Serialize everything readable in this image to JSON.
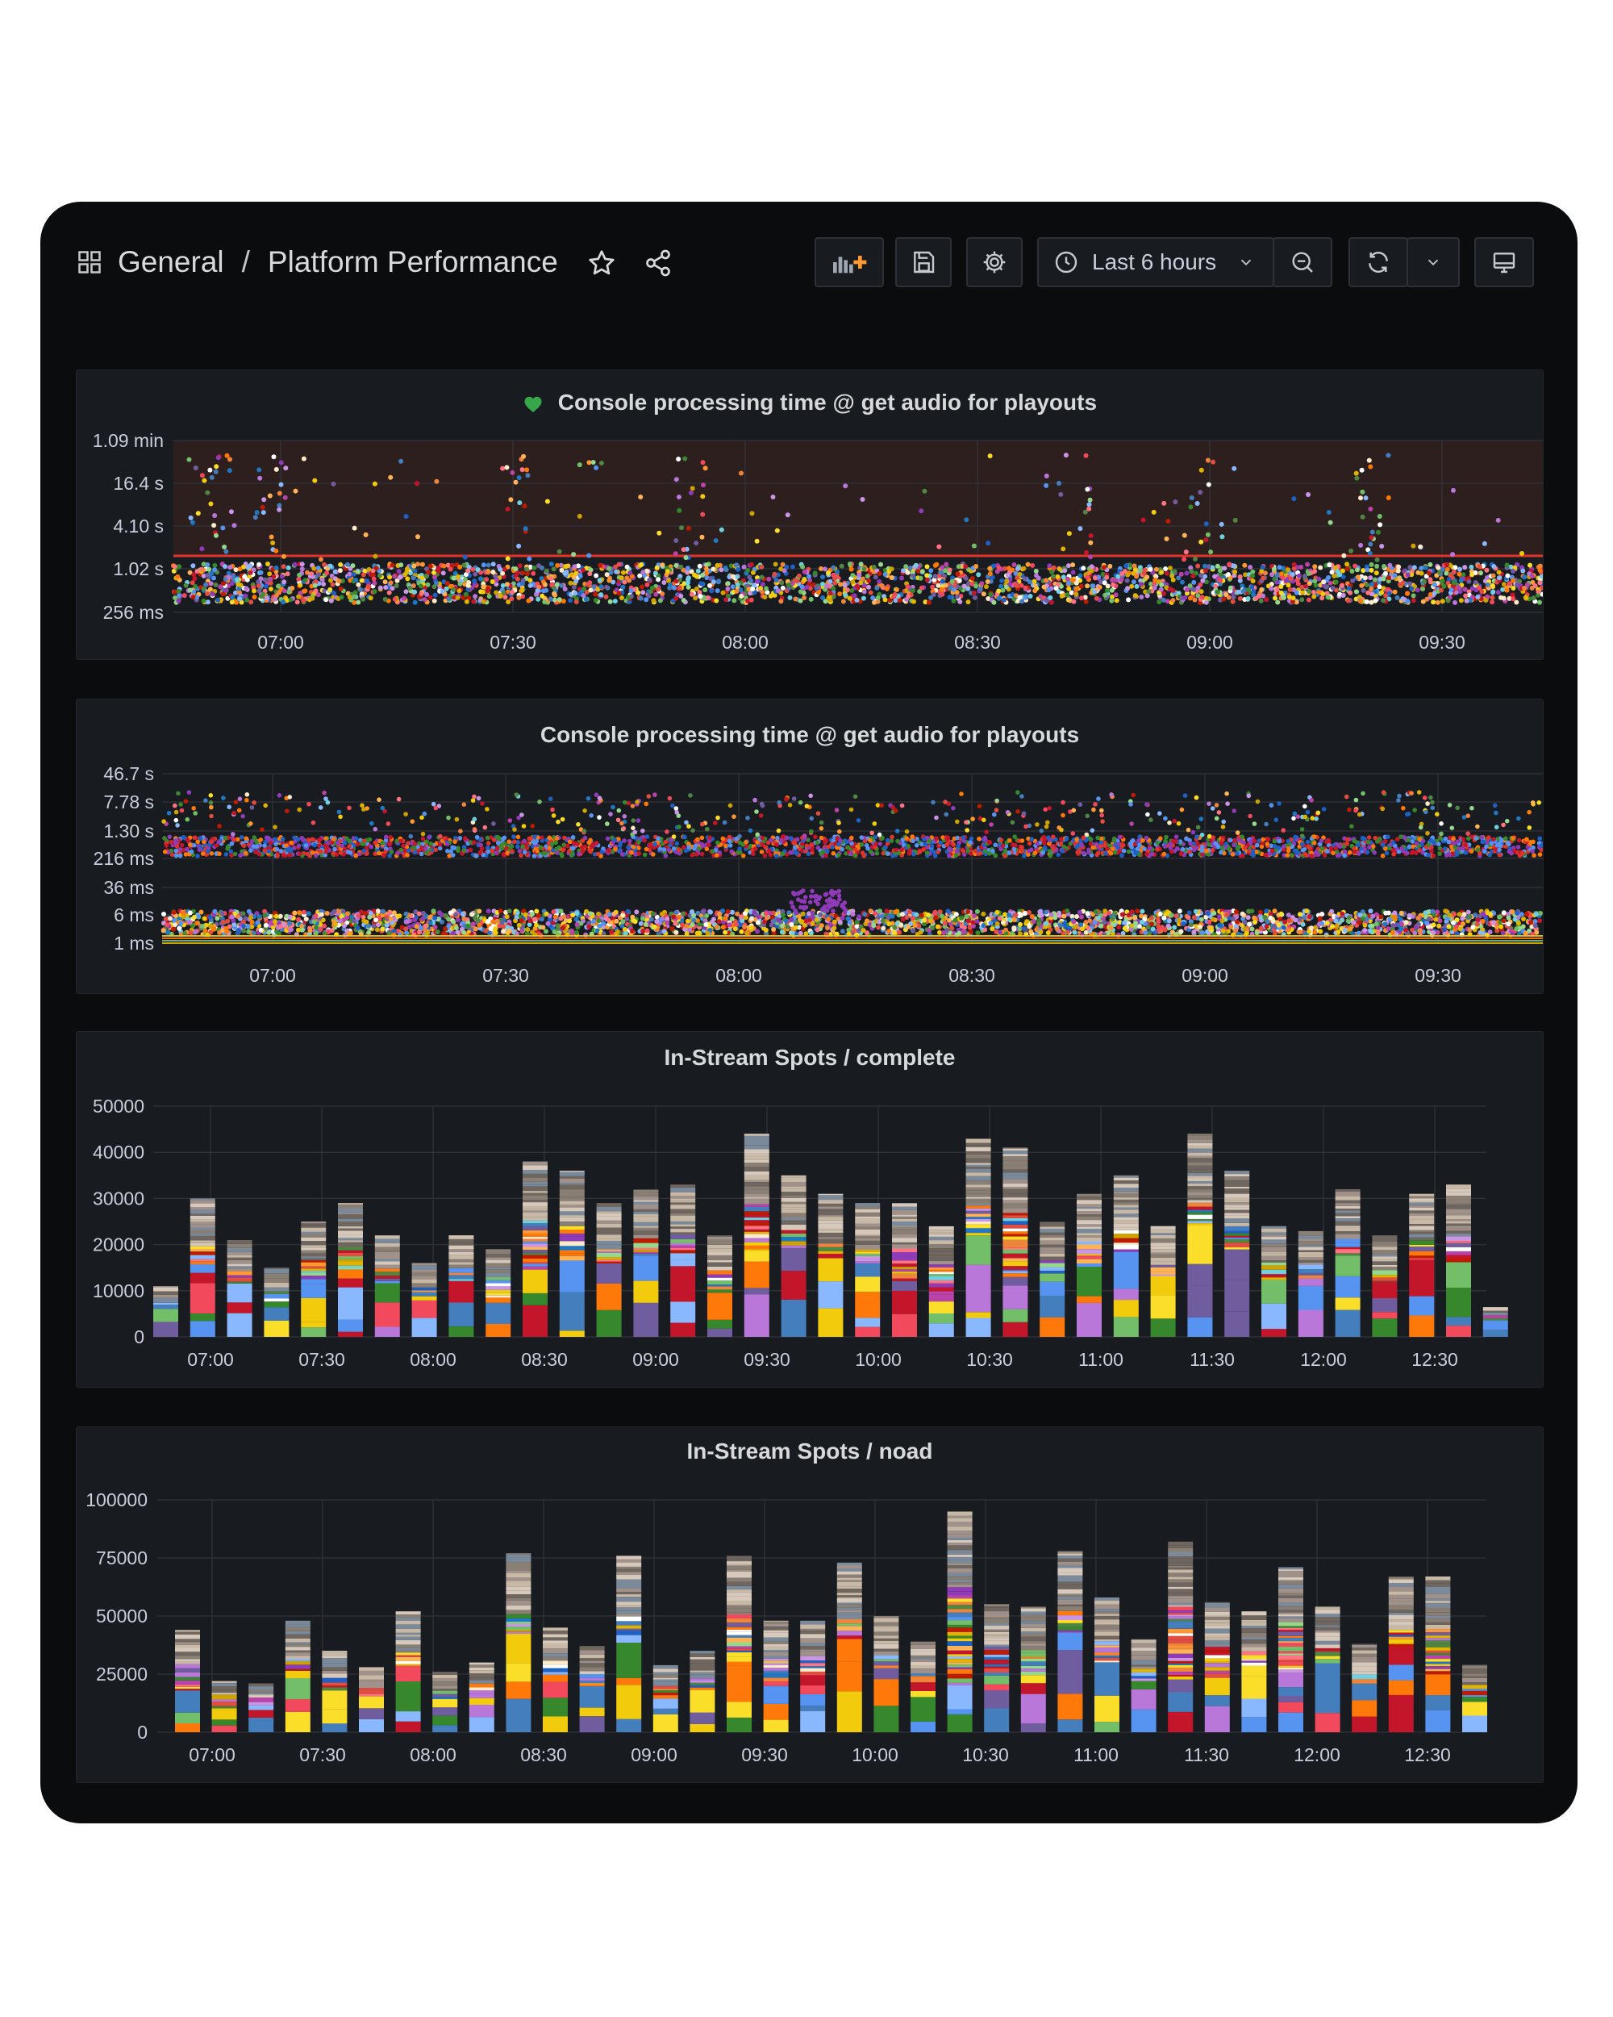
{
  "header": {
    "folder": "General",
    "separator": "/",
    "dashboard_title": "Platform Performance",
    "icons": [
      "dashboard-grid-icon",
      "star-icon",
      "share-icon"
    ]
  },
  "toolbar": {
    "time_range_label": "Last 6 hours",
    "buttons": [
      "add-panel",
      "save-dashboard",
      "dashboard-settings",
      "time-picker",
      "zoom-out",
      "refresh",
      "refresh-interval",
      "view-mode"
    ]
  },
  "panels": [
    {
      "title": "Console processing time @ get audio for playouts",
      "health": "ok"
    },
    {
      "title": "Console processing time @ get audio for playouts"
    },
    {
      "title": "In-Stream Spots / complete"
    },
    {
      "title": "In-Stream Spots / noad"
    }
  ],
  "colors": {
    "background": "#0b0c0e",
    "panel": "#181b1f",
    "grid": "#2f3035",
    "threshold_line": "#e0342b",
    "threshold_fill": "#2e1f1f",
    "health_ok": "#37a64b"
  },
  "chart_data": [
    {
      "type": "scatter",
      "title": "Console processing time @ get audio for playouts",
      "y_scale": "log",
      "y_ticks": [
        "1.09 min",
        "16.4 s",
        "4.10 s",
        "1.02 s",
        "256 ms"
      ],
      "x_ticks": [
        "07:00",
        "07:30",
        "08:00",
        "08:30",
        "09:00",
        "09:30"
      ],
      "threshold": "1.5 s",
      "bulk_range": [
        "350 ms",
        "1 s"
      ]
    },
    {
      "type": "scatter",
      "title": "Console processing time @ get audio for playouts",
      "y_scale": "log",
      "y_ticks": [
        "46.7 s",
        "7.78 s",
        "1.30 s",
        "216 ms",
        "36 ms",
        "6 ms",
        "1 ms"
      ],
      "x_ticks": [
        "07:00",
        "07:30",
        "08:00",
        "08:30",
        "09:00",
        "09:30"
      ],
      "bands": [
        "~1 s",
        "1-6 ms"
      ]
    },
    {
      "type": "bar",
      "title": "In-Stream Spots / complete",
      "stacked": true,
      "ylim": [
        0,
        50000
      ],
      "y_ticks": [
        "0",
        "10000",
        "20000",
        "30000",
        "40000",
        "50000"
      ],
      "x_ticks": [
        "07:00",
        "07:30",
        "08:00",
        "08:30",
        "09:00",
        "09:30",
        "10:00",
        "10:30",
        "11:00",
        "11:30",
        "12:00",
        "12:30"
      ],
      "values": [
        11000,
        30000,
        21000,
        15000,
        25000,
        29000,
        22000,
        16000,
        22000,
        19000,
        38000,
        36000,
        29000,
        32000,
        33000,
        22000,
        44000,
        35000,
        31000,
        29000,
        29000,
        24000,
        43000,
        41000,
        25000,
        31000,
        35000,
        24000,
        44000,
        36000,
        24000,
        23000,
        32000,
        22000,
        31000,
        33000,
        6500
      ]
    },
    {
      "type": "bar",
      "title": "In-Stream Spots / noad",
      "stacked": true,
      "ylim": [
        0,
        100000
      ],
      "y_ticks": [
        "0",
        "25000",
        "50000",
        "75000",
        "100000"
      ],
      "x_ticks": [
        "07:00",
        "07:30",
        "08:00",
        "08:30",
        "09:00",
        "09:30",
        "10:00",
        "10:30",
        "11:00",
        "11:30",
        "12:00",
        "12:30"
      ],
      "values": [
        44000,
        22000,
        21000,
        48000,
        35000,
        28000,
        52000,
        26000,
        30000,
        77000,
        45000,
        37000,
        76000,
        29000,
        35000,
        76000,
        48000,
        48000,
        73000,
        50000,
        39000,
        95000,
        55000,
        54000,
        78000,
        58000,
        40000,
        82000,
        56000,
        52000,
        71000,
        54000,
        38000,
        67000,
        67000,
        29000
      ]
    }
  ]
}
